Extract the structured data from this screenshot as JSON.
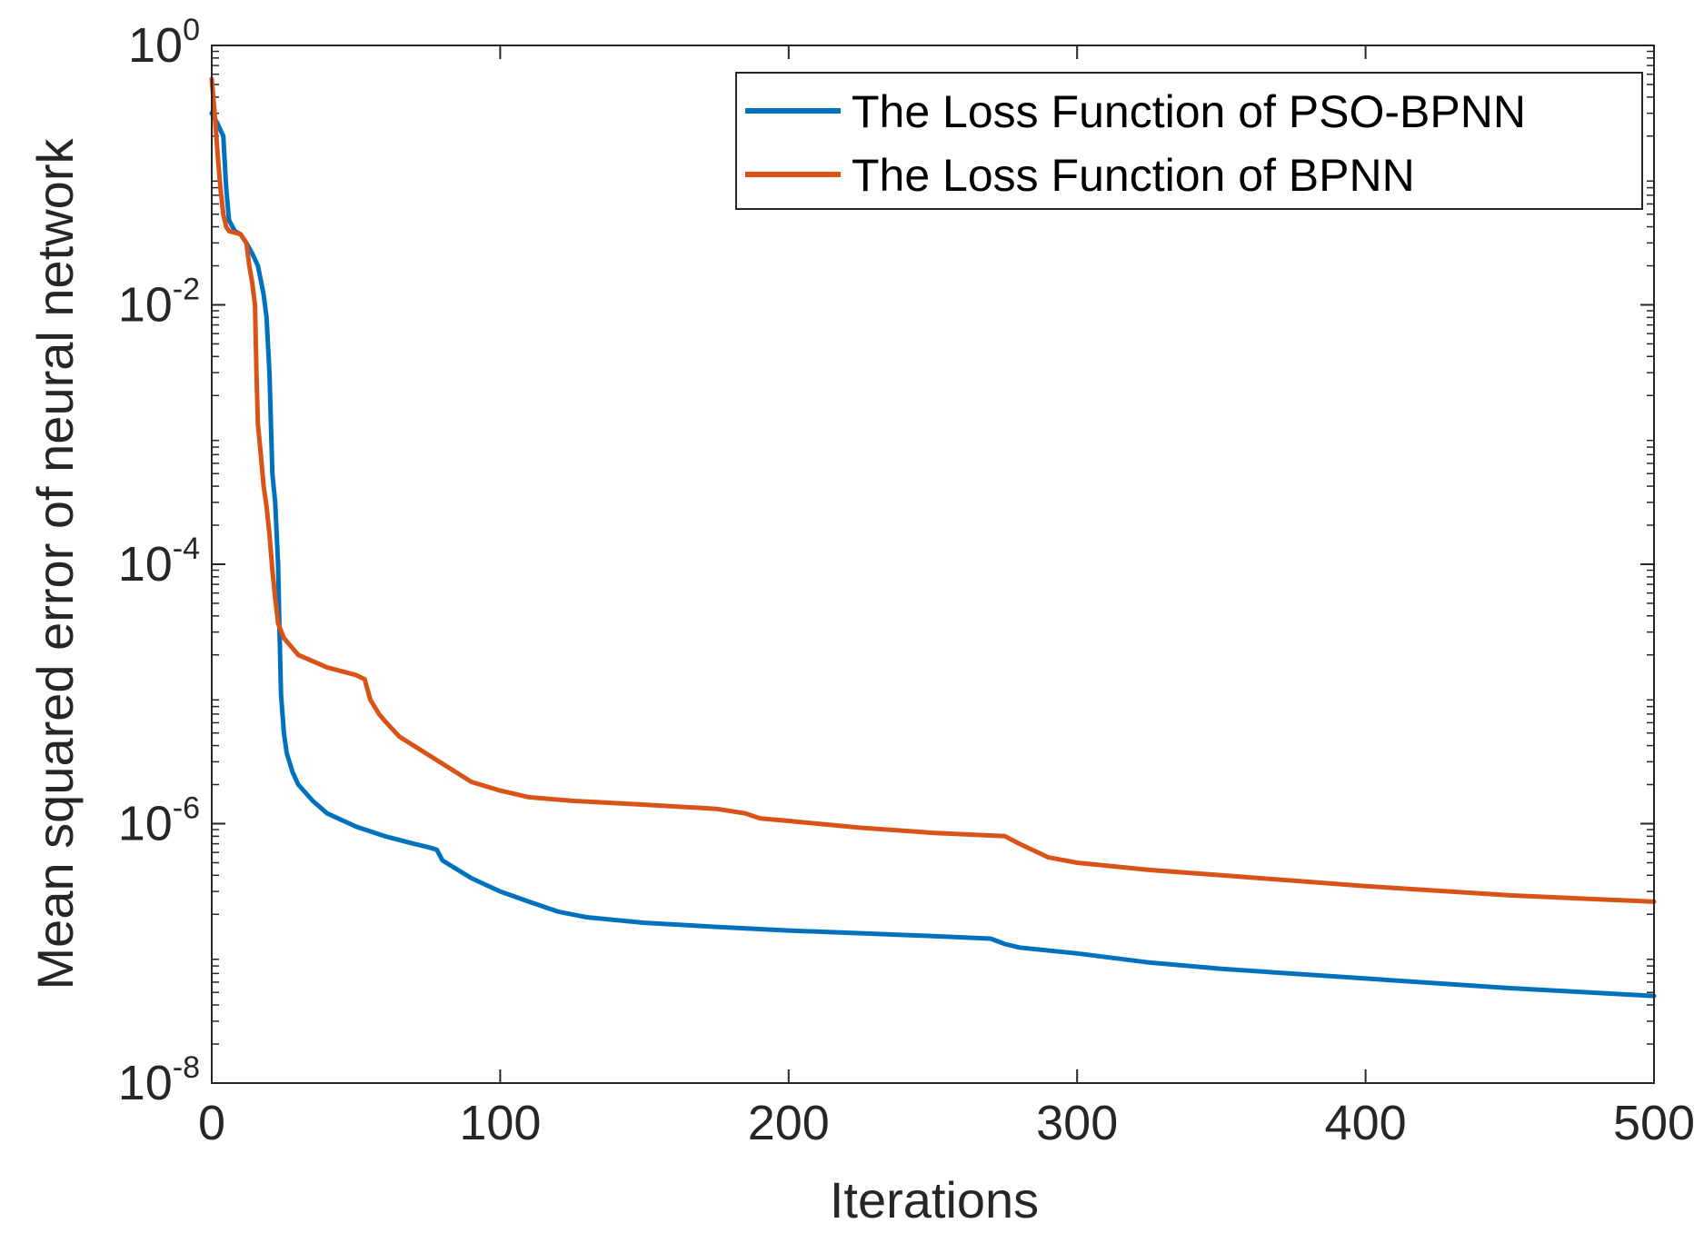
{
  "chart_data": {
    "type": "line",
    "title": "",
    "xlabel": "Iterations",
    "ylabel": "Mean squared error of neural network",
    "xlim": [
      0,
      500
    ],
    "ylim_log10": [
      -8,
      0
    ],
    "yscale": "log",
    "xticks": [
      {
        "value": 0,
        "label": "0"
      },
      {
        "value": 100,
        "label": "100"
      },
      {
        "value": 200,
        "label": "200"
      },
      {
        "value": 300,
        "label": "300"
      },
      {
        "value": 400,
        "label": "400"
      },
      {
        "value": 500,
        "label": "500"
      }
    ],
    "yticks": [
      {
        "exp": 0,
        "base": "10",
        "sup": "0"
      },
      {
        "exp": -2,
        "base": "10",
        "sup": "-2"
      },
      {
        "exp": -4,
        "base": "10",
        "sup": "-4"
      },
      {
        "exp": -6,
        "base": "10",
        "sup": "-6"
      },
      {
        "exp": -8,
        "base": "10",
        "sup": "-8"
      }
    ],
    "legend_position": "top-right",
    "series": [
      {
        "name": "The Loss Function of PSO-BPNN",
        "color": "#0072BD",
        "x": [
          0,
          2,
          4,
          5,
          6,
          8,
          10,
          12,
          14,
          16,
          18,
          19,
          20,
          21,
          22,
          23,
          23.5,
          24,
          25,
          26,
          28,
          30,
          35,
          40,
          50,
          60,
          70,
          75,
          78,
          80,
          90,
          100,
          110,
          120,
          130,
          150,
          175,
          200,
          225,
          250,
          270,
          275,
          280,
          300,
          325,
          350,
          400,
          450,
          500
        ],
        "y": [
          0.3,
          0.25,
          0.2,
          0.08,
          0.045,
          0.037,
          0.035,
          0.03,
          0.025,
          0.02,
          0.012,
          0.008,
          0.003,
          0.0005,
          0.0003,
          0.0001,
          3e-05,
          1e-05,
          5e-06,
          3.5e-06,
          2.5e-06,
          2e-06,
          1.5e-06,
          1.2e-06,
          9.5e-07,
          8e-07,
          7e-07,
          6.6e-07,
          6.3e-07,
          5.2e-07,
          3.8e-07,
          3e-07,
          2.5e-07,
          2.1e-07,
          1.9e-07,
          1.72e-07,
          1.6e-07,
          1.5e-07,
          1.43e-07,
          1.36e-07,
          1.3e-07,
          1.18e-07,
          1.11e-07,
          1e-07,
          8.5e-08,
          7.6e-08,
          6.4e-08,
          5.4e-08,
          4.7e-08
        ]
      },
      {
        "name": "The Loss Function of BPNN",
        "color": "#D95319",
        "x": [
          0,
          1,
          2,
          3,
          4,
          5,
          6,
          8,
          10,
          12,
          13,
          14,
          15,
          15.5,
          16,
          17,
          18,
          19,
          20,
          21,
          22,
          23,
          25,
          30,
          40,
          50,
          53,
          55,
          58,
          60,
          65,
          70,
          80,
          90,
          100,
          110,
          125,
          150,
          175,
          185,
          190,
          200,
          225,
          250,
          275,
          280,
          285,
          290,
          300,
          325,
          350,
          400,
          450,
          500
        ],
        "y": [
          0.55,
          0.3,
          0.15,
          0.08,
          0.05,
          0.04,
          0.037,
          0.036,
          0.035,
          0.03,
          0.02,
          0.015,
          0.01,
          0.003,
          0.0012,
          0.0007,
          0.0004,
          0.00028,
          0.00017,
          9e-05,
          5.5e-05,
          3.5e-05,
          2.7e-05,
          2e-05,
          1.6e-05,
          1.4e-05,
          1.3e-05,
          9e-06,
          7e-06,
          6.2e-06,
          4.7e-06,
          4e-06,
          2.9e-06,
          2.1e-06,
          1.8e-06,
          1.6e-06,
          1.5e-06,
          1.4e-06,
          1.3e-06,
          1.2e-06,
          1.1e-06,
          1.05e-06,
          9.3e-07,
          8.5e-07,
          8e-07,
          7e-07,
          6.2e-07,
          5.5e-07,
          5e-07,
          4.4e-07,
          4e-07,
          3.3e-07,
          2.8e-07,
          2.5e-07
        ]
      }
    ]
  }
}
